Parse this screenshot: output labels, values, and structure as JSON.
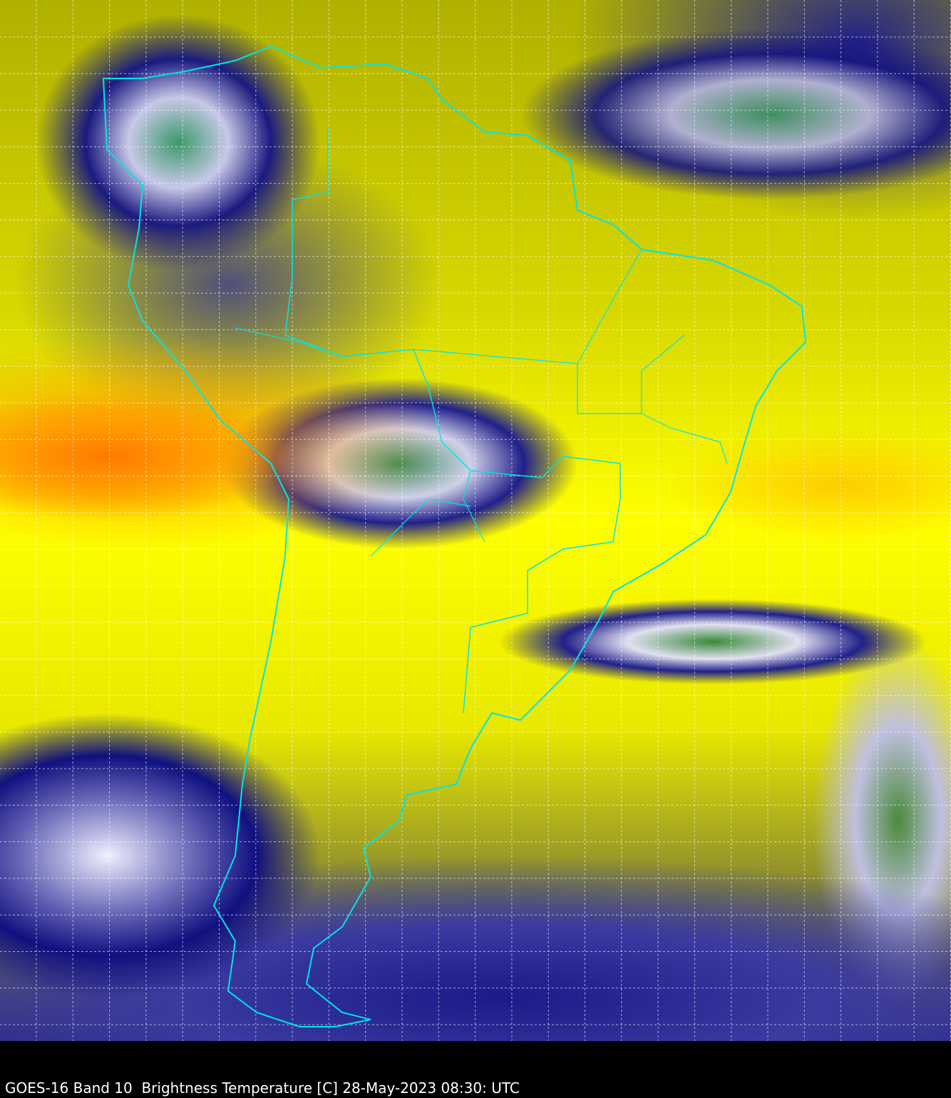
{
  "caption": "GOES-16 Band 10  Brightness Temperature [C] 28-May-2023 08:30: UTC",
  "colors": {
    "coastline": "#00e5e5",
    "grid": "#ffffff",
    "background": "#000000"
  }
}
